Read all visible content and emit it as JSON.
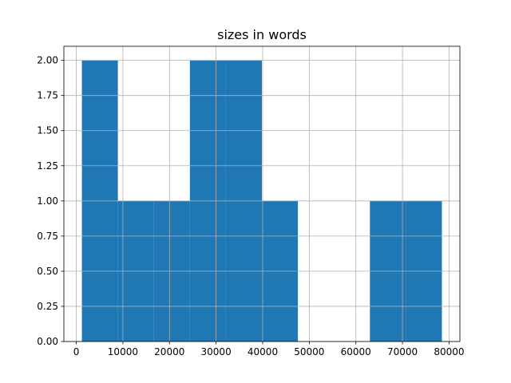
{
  "chart_data": {
    "type": "histogram",
    "title": "sizes in words",
    "bins": [
      1202,
      8927,
      16653,
      24378,
      32103,
      39829,
      47554,
      55279,
      63004,
      70730,
      78455
    ],
    "values": [
      2,
      1,
      1,
      2,
      2,
      1,
      0,
      0,
      1,
      1
    ],
    "color": "#1f77b4",
    "xlim": [
      -2661,
      82318
    ],
    "xticks": [
      0,
      10000,
      20000,
      30000,
      40000,
      50000,
      60000,
      70000,
      80000
    ],
    "ylim": [
      0,
      2.1
    ],
    "yticks": [
      {
        "value": 0,
        "label": "0.00"
      },
      {
        "value": 0.25,
        "label": "0.25"
      },
      {
        "value": 0.5,
        "label": "0.50"
      },
      {
        "value": 0.75,
        "label": "0.75"
      },
      {
        "value": 1,
        "label": "1.00"
      },
      {
        "value": 1.25,
        "label": "1.25"
      },
      {
        "value": 1.5,
        "label": "1.50"
      },
      {
        "value": 1.75,
        "label": "1.75"
      },
      {
        "value": 2,
        "label": "2.00"
      }
    ],
    "grid": true
  }
}
